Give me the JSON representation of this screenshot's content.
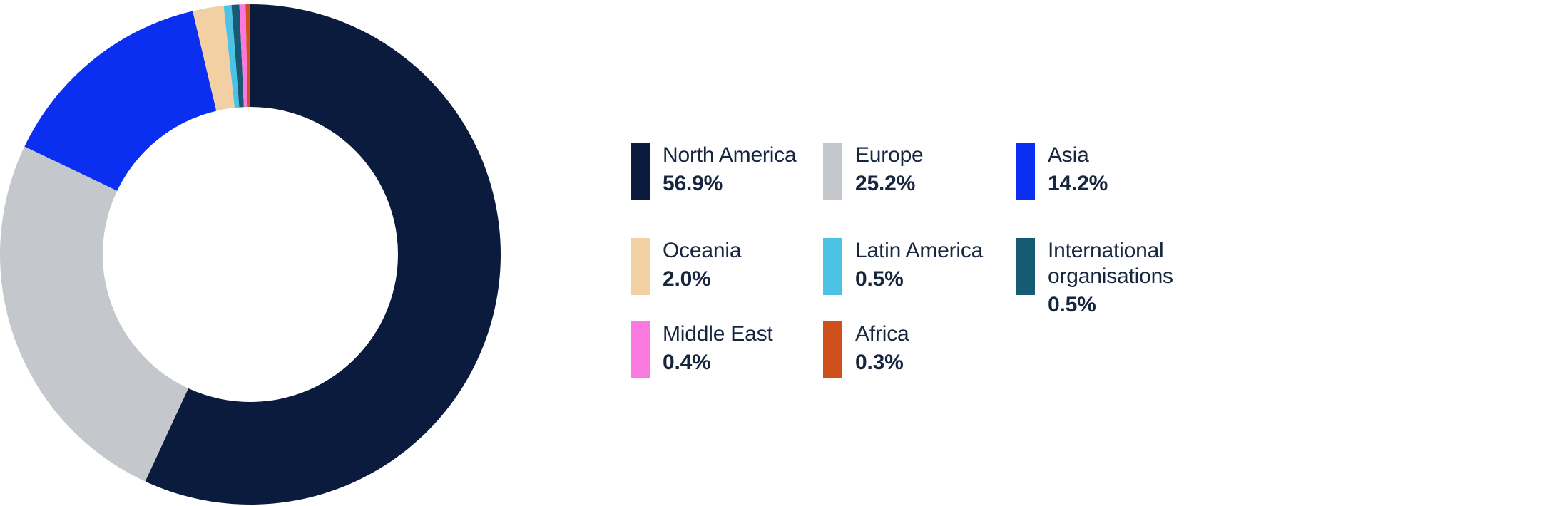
{
  "chart_data": {
    "type": "pie",
    "variant": "donut",
    "start_angle_deg": 0,
    "direction": "clockwise",
    "inner_radius_ratio": 0.59,
    "grid": false,
    "legend_position": "right",
    "legend_columns": 3,
    "background": "#FFFFFF",
    "text_color": "#17263F",
    "series": [
      {
        "label": "North America",
        "value": 56.9,
        "display": "56.9%",
        "color": "#0A1B3D"
      },
      {
        "label": "Europe",
        "value": 25.2,
        "display": "25.2%",
        "color": "#C4C7CB"
      },
      {
        "label": "Asia",
        "value": 14.2,
        "display": "14.2%",
        "color": "#0B2FF1"
      },
      {
        "label": "Oceania",
        "value": 2.0,
        "display": "2.0%",
        "color": "#F2D0A4"
      },
      {
        "label": "Latin America",
        "value": 0.5,
        "display": "0.5%",
        "color": "#4CC3E4"
      },
      {
        "label": "International organisations",
        "value": 0.5,
        "display": "0.5%",
        "color": "#175A73"
      },
      {
        "label": "Middle East",
        "value": 0.4,
        "display": "0.4%",
        "color": "#FA79DF"
      },
      {
        "label": "Africa",
        "value": 0.3,
        "display": "0.3%",
        "color": "#D0501B"
      }
    ]
  }
}
